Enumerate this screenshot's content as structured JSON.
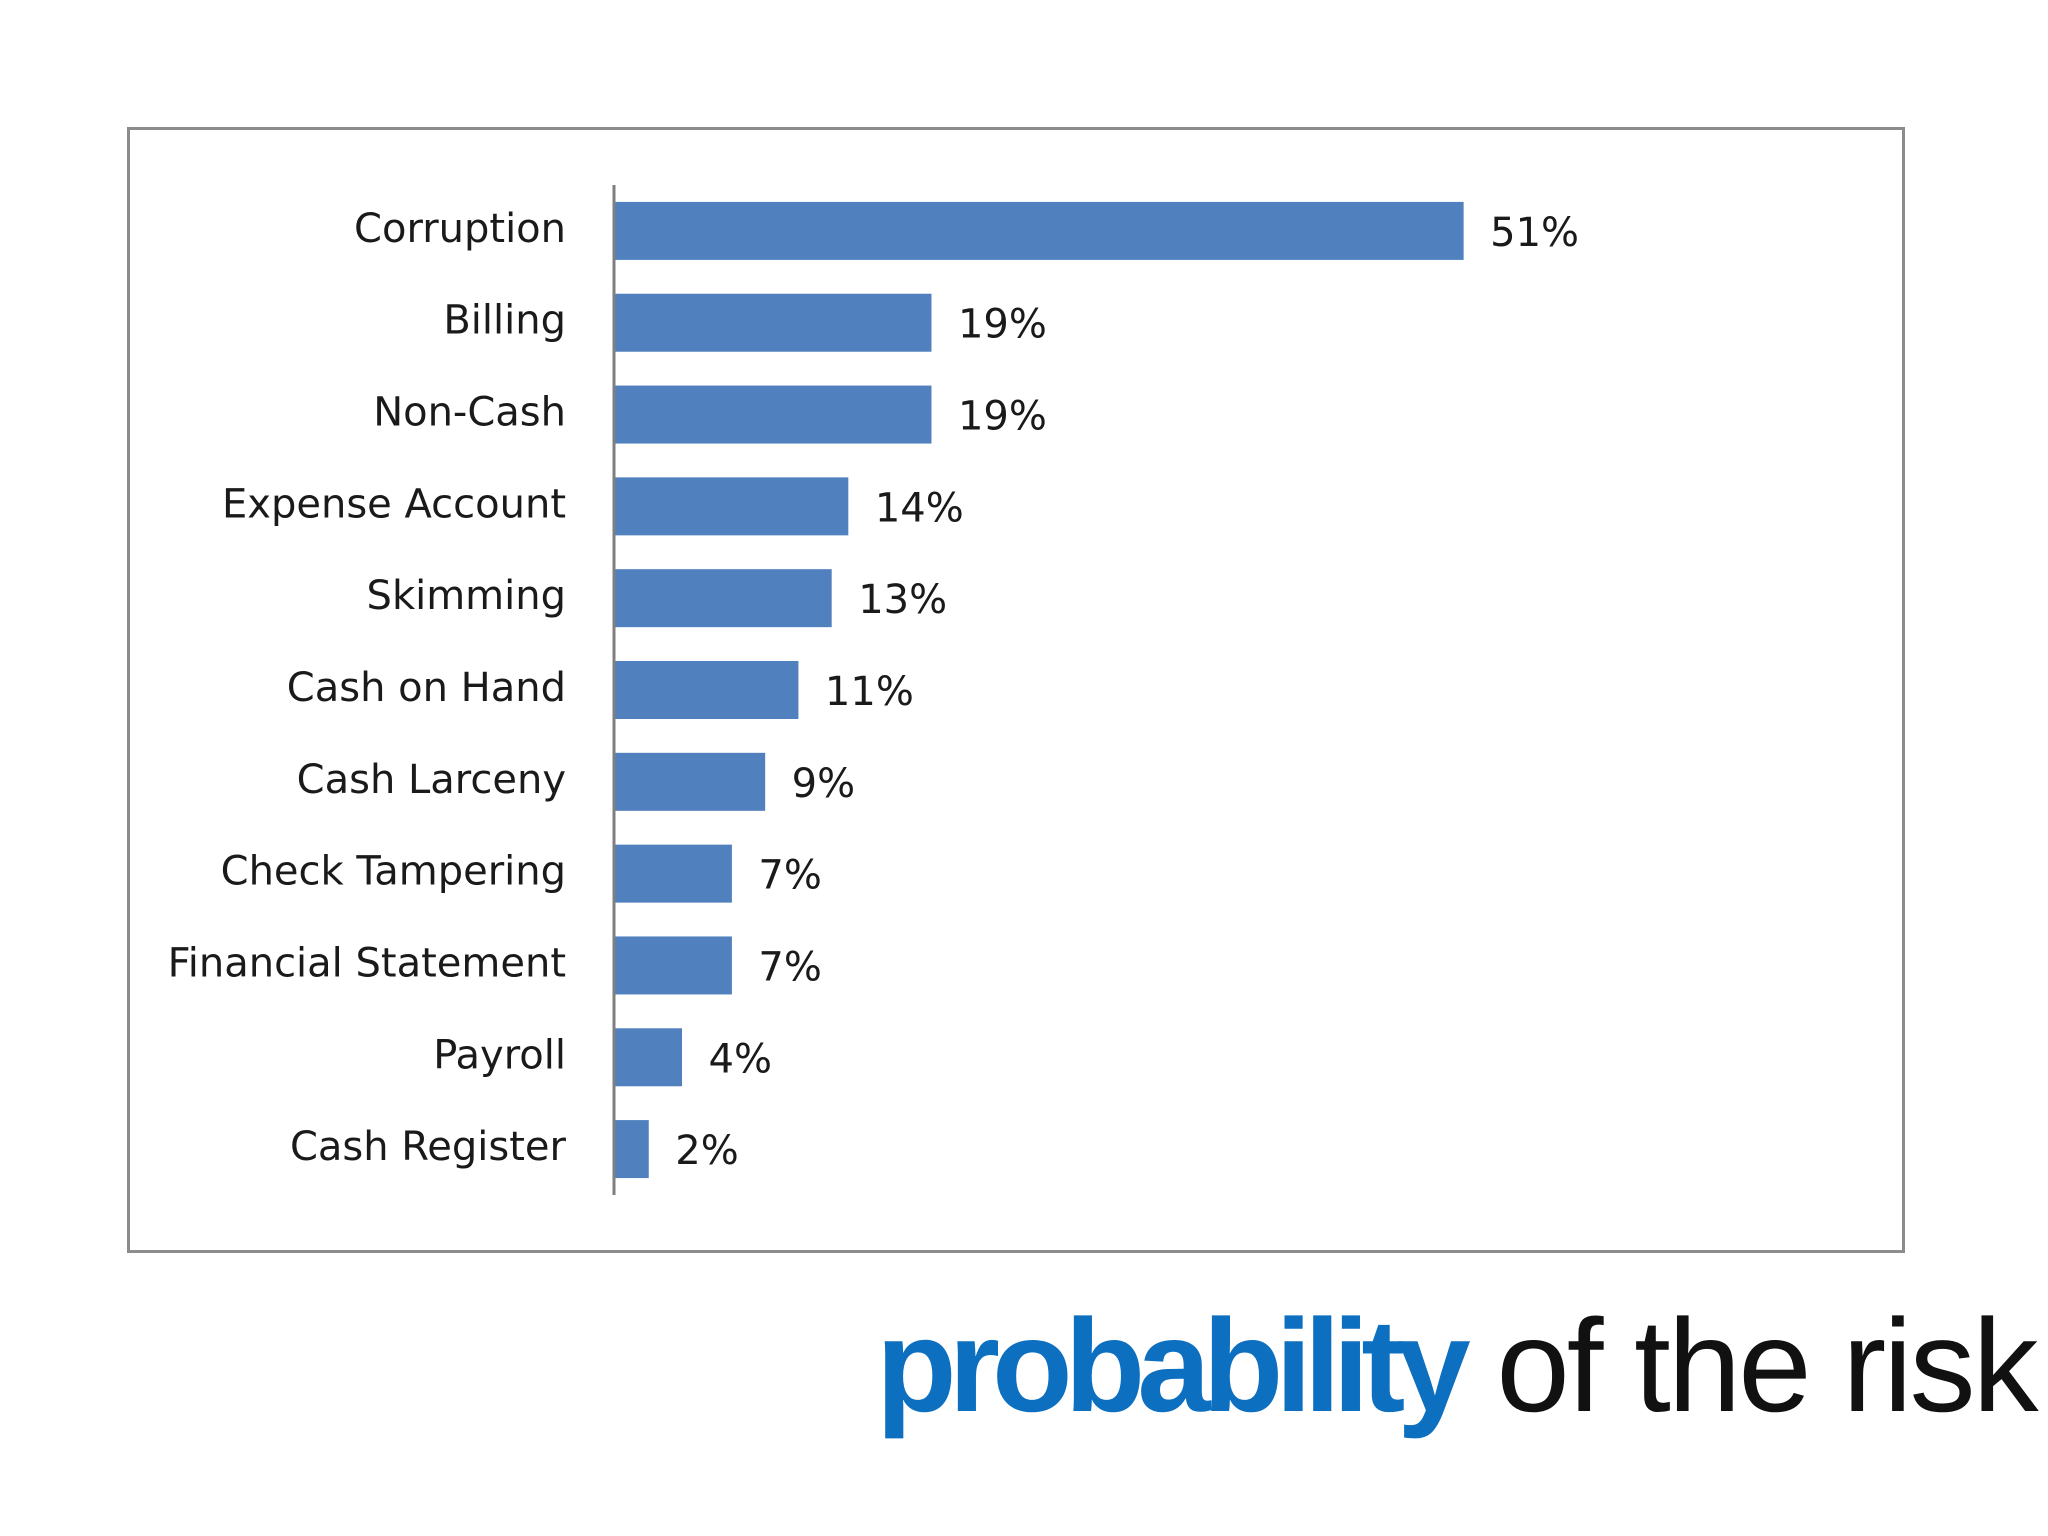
{
  "heading": {
    "emphasis": "probability",
    "rest": " of the risk"
  },
  "colors": {
    "bar": "#5180be",
    "heading_emphasis": "#0d6fbf",
    "axis": "#7f7f7f"
  },
  "chart_data": {
    "type": "bar",
    "orientation": "horizontal",
    "categories": [
      "Corruption",
      "Billing",
      "Non-Cash",
      "Expense Account",
      "Skimming",
      "Cash on Hand",
      "Cash Larceny",
      "Check Tampering",
      "Financial Statement",
      "Payroll",
      "Cash Register"
    ],
    "values": [
      51,
      19,
      19,
      14,
      13,
      11,
      9,
      7,
      7,
      4,
      2
    ],
    "value_labels": [
      "51%",
      "19%",
      "19%",
      "14%",
      "13%",
      "11%",
      "9%",
      "7%",
      "7%",
      "4%",
      "2%"
    ],
    "xlim": [
      0,
      60
    ],
    "grid": false,
    "legend": "none"
  }
}
